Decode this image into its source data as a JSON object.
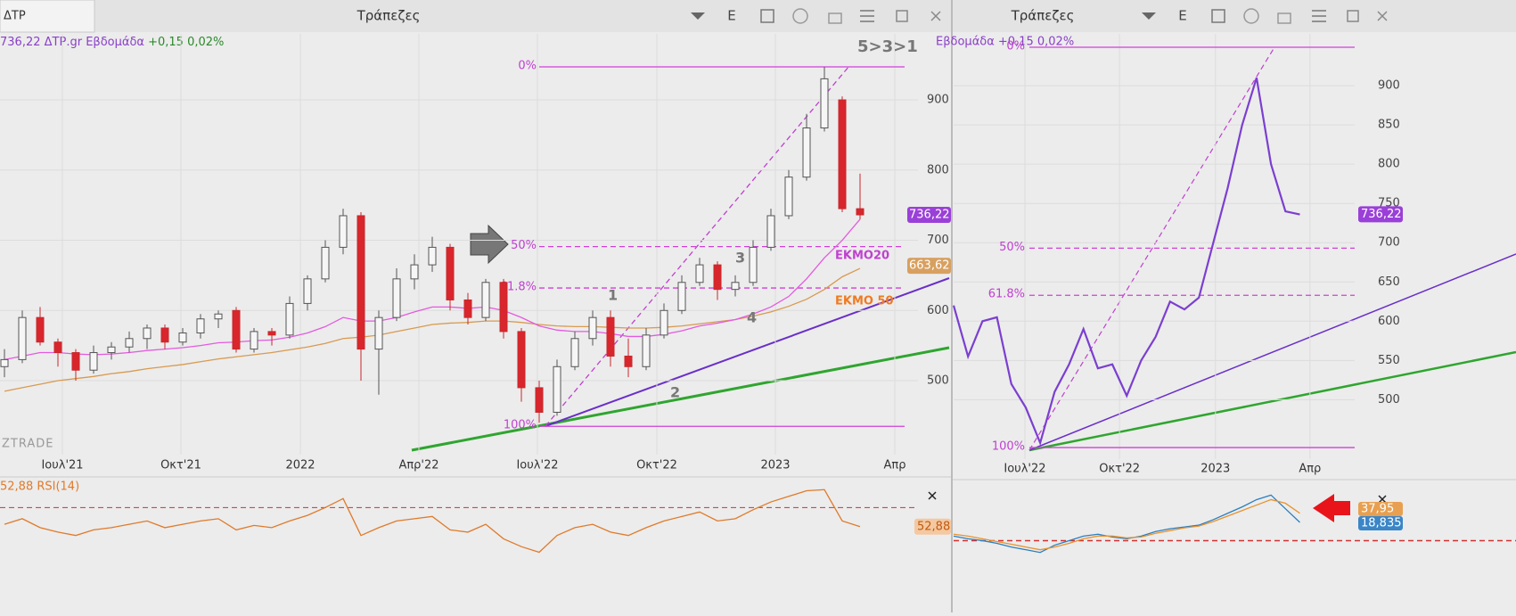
{
  "left_panel": {
    "tab": "ΔΤΡ",
    "title": "Τράπεζες",
    "button": "E",
    "info": {
      "price": "736,22",
      "symbol": "ΔΤΡ.gr",
      "period": "Εβδομάδα",
      "change": "+0,15 0,02%"
    },
    "chart": {
      "type": "candlestick",
      "ylim": [
        401,
        994
      ],
      "yticks": [
        500,
        600,
        700,
        800,
        900
      ],
      "xlim": [
        -0.25,
        52
      ],
      "xticks": [
        {
          "value": 3.25,
          "label": "Ιουλ'21"
        },
        {
          "value": 9.9,
          "label": "Οκτ'21"
        },
        {
          "value": 16.6,
          "label": "2022"
        },
        {
          "value": 23.25,
          "label": "Απρ'22"
        },
        {
          "value": 29.9,
          "label": "Ιουλ'22"
        },
        {
          "value": 36.6,
          "label": "Οκτ'22"
        },
        {
          "value": 43.25,
          "label": "2023"
        },
        {
          "value": 49.95,
          "label": "Απρ"
        }
      ],
      "candles": [
        [
          520,
          545,
          505,
          530
        ],
        [
          530,
          600,
          525,
          590
        ],
        [
          590,
          605,
          550,
          555
        ],
        [
          555,
          560,
          520,
          540
        ],
        [
          540,
          545,
          500,
          515
        ],
        [
          515,
          550,
          510,
          540
        ],
        [
          540,
          555,
          530,
          548
        ],
        [
          548,
          570,
          540,
          560
        ],
        [
          560,
          580,
          545,
          575
        ],
        [
          575,
          580,
          545,
          555
        ],
        [
          555,
          575,
          550,
          568
        ],
        [
          568,
          595,
          560,
          588
        ],
        [
          588,
          600,
          575,
          595
        ],
        [
          600,
          605,
          540,
          545
        ],
        [
          545,
          575,
          540,
          570
        ],
        [
          570,
          575,
          550,
          565
        ],
        [
          565,
          620,
          560,
          610
        ],
        [
          610,
          650,
          600,
          645
        ],
        [
          645,
          700,
          640,
          690
        ],
        [
          690,
          745,
          680,
          735
        ],
        [
          735,
          740,
          500,
          545
        ],
        [
          545,
          600,
          480,
          590
        ],
        [
          590,
          660,
          585,
          645
        ],
        [
          645,
          680,
          630,
          665
        ],
        [
          665,
          705,
          655,
          690
        ],
        [
          690,
          695,
          600,
          615
        ],
        [
          615,
          625,
          580,
          590
        ],
        [
          590,
          645,
          585,
          640
        ],
        [
          640,
          645,
          560,
          570
        ],
        [
          570,
          575,
          470,
          490
        ],
        [
          490,
          500,
          440,
          455
        ],
        [
          455,
          530,
          450,
          520
        ],
        [
          520,
          570,
          515,
          560
        ],
        [
          560,
          600,
          550,
          590
        ],
        [
          590,
          600,
          520,
          535
        ],
        [
          535,
          560,
          505,
          520
        ],
        [
          520,
          575,
          515,
          565
        ],
        [
          565,
          610,
          560,
          600
        ],
        [
          600,
          650,
          595,
          640
        ],
        [
          640,
          675,
          635,
          665
        ],
        [
          665,
          670,
          615,
          630
        ],
        [
          630,
          650,
          620,
          640
        ],
        [
          640,
          700,
          635,
          690
        ],
        [
          690,
          745,
          685,
          735
        ],
        [
          735,
          800,
          730,
          790
        ],
        [
          790,
          880,
          785,
          860
        ],
        [
          860,
          947,
          855,
          930
        ],
        [
          900,
          905,
          740,
          745
        ],
        [
          745,
          795,
          730,
          736.22
        ]
      ],
      "ema20": [
        530,
        535,
        540,
        540,
        538,
        537,
        538,
        540,
        543,
        545,
        547,
        550,
        554,
        555,
        557,
        558,
        562,
        568,
        577,
        590,
        585,
        585,
        590,
        598,
        605,
        605,
        603,
        605,
        600,
        590,
        578,
        572,
        570,
        570,
        567,
        563,
        563,
        566,
        571,
        578,
        582,
        587,
        595,
        605,
        620,
        645,
        675,
        700,
        730
      ],
      "ema50": [
        485,
        490,
        495,
        500,
        503,
        506,
        510,
        513,
        517,
        520,
        523,
        527,
        531,
        534,
        537,
        540,
        544,
        548,
        553,
        560,
        562,
        565,
        570,
        575,
        580,
        582,
        583,
        585,
        585,
        583,
        580,
        578,
        577,
        577,
        576,
        575,
        575,
        576,
        578,
        581,
        584,
        587,
        592,
        598,
        606,
        616,
        630,
        648,
        660
      ],
      "ema20_label": "ΕΚΜΟ20",
      "ema50_label": "ΕΚΜΟ 50",
      "fib": [
        {
          "label": "0%",
          "value": 947
        },
        {
          "label": "50%",
          "value": 691
        },
        {
          "label": "61.8%",
          "value": 632
        },
        {
          "label": "100%",
          "value": 435
        }
      ],
      "price_labels": [
        {
          "value": 736.22,
          "label": "736,22"
        },
        {
          "value": 663.62,
          "label": "663,62"
        }
      ],
      "annotations": [
        "5>3>1",
        "1",
        "2",
        "3",
        "4"
      ],
      "watermark": "ZTRADE"
    },
    "rsi": {
      "title": "52,88 RSI(14)",
      "ylim": [
        20,
        95
      ],
      "level": 70,
      "values": [
        55,
        60,
        52,
        48,
        45,
        50,
        52,
        55,
        58,
        52,
        55,
        58,
        60,
        50,
        54,
        52,
        58,
        63,
        70,
        78,
        45,
        52,
        58,
        60,
        62,
        50,
        48,
        55,
        42,
        35,
        30,
        45,
        52,
        55,
        48,
        45,
        52,
        58,
        62,
        66,
        58,
        60,
        68,
        75,
        80,
        85,
        86,
        58,
        52.88
      ],
      "last": {
        "value": 52.88,
        "label": "52,88"
      }
    }
  },
  "right_panel": {
    "title": "Τράπεζες",
    "button": "E",
    "info": "Εβδομάδα +0,15 0,02%",
    "chart": {
      "type": "line",
      "ylim": [
        430,
        966
      ],
      "yticks": [
        500,
        550,
        600,
        650,
        700,
        750,
        800,
        850,
        900
      ],
      "xlim": [
        0,
        27.8
      ],
      "xticks": [
        {
          "value": 4.94,
          "label": "Ιουλ'22"
        },
        {
          "value": 11.5,
          "label": "Οκτ'22"
        },
        {
          "value": 18.15,
          "label": "2023"
        },
        {
          "value": 24.7,
          "label": "Απρ"
        }
      ],
      "color": "#7b3fd0",
      "values": [
        620,
        555,
        600,
        605,
        520,
        490,
        445,
        510,
        545,
        590,
        540,
        545,
        505,
        550,
        580,
        625,
        615,
        630,
        700,
        770,
        850,
        910,
        800,
        740,
        736
      ],
      "fib": [
        {
          "label": "0%",
          "value": 949
        },
        {
          "label": "50%",
          "value": 693
        },
        {
          "label": "61.8%",
          "value": 633
        },
        {
          "label": "100%",
          "value": 439
        }
      ],
      "price_label": {
        "value": 736.22,
        "label": "736,22"
      }
    },
    "oscillator": {
      "ylim": [
        0,
        90
      ],
      "level": 25,
      "series": [
        {
          "color": "#2a7fc0",
          "values": [
            30,
            27,
            25,
            22,
            18,
            15,
            12,
            20,
            25,
            30,
            32,
            29,
            27,
            30,
            35,
            38,
            40,
            42,
            48,
            55,
            62,
            70,
            75,
            60,
            45
          ]
        },
        {
          "color": "#e8922e",
          "values": [
            32,
            30,
            27,
            24,
            21,
            18,
            15,
            18,
            22,
            27,
            30,
            30,
            28,
            29,
            33,
            36,
            39,
            41,
            46,
            52,
            58,
            64,
            70,
            66,
            55
          ]
        }
      ],
      "labels": [
        "37,95",
        "18,835"
      ]
    }
  }
}
